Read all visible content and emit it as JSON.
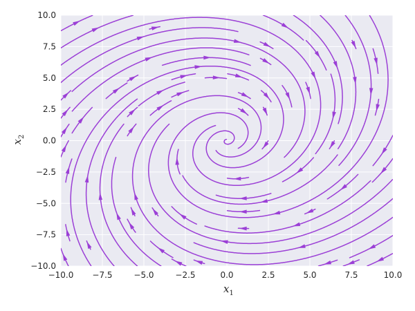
{
  "chart_data": {
    "type": "streamplot",
    "title": "",
    "xlabel": "x",
    "xlabel_subscript": "1",
    "ylabel": "x",
    "ylabel_subscript": "2",
    "xlim": [
      -10,
      10
    ],
    "ylim": [
      -10,
      10
    ],
    "xticks": [
      -10,
      -7.5,
      -5,
      -2.5,
      0,
      2.5,
      5,
      7.5,
      10
    ],
    "yticks": [
      -10,
      -7.5,
      -5,
      -2.5,
      0,
      2.5,
      5,
      7.5,
      10
    ],
    "xtick_labels": [
      "−10.0",
      "−7.5",
      "−5.0",
      "−2.5",
      "0.0",
      "2.5",
      "5.0",
      "7.5",
      "10.0"
    ],
    "ytick_labels": [
      "−10.0",
      "−7.5",
      "−5.0",
      "−2.5",
      "0.0",
      "2.5",
      "5.0",
      "7.5",
      "10.0"
    ],
    "grid": true,
    "vector_field": {
      "dx1": "-0.5*x1 + 1.0*x2",
      "dx2": "-1.2*x1 - 0.2*x2",
      "direction": "clockwise spiral toward origin"
    },
    "colors": {
      "line": "#9b3fd6",
      "background": "#eaeaf2",
      "grid": "#ffffff",
      "text": "#262626"
    }
  }
}
